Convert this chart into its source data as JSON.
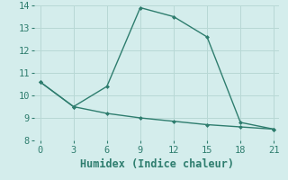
{
  "line1_x": [
    0,
    3,
    6,
    9,
    12,
    15,
    18,
    21
  ],
  "line1_y": [
    10.6,
    9.5,
    10.4,
    13.9,
    13.5,
    12.6,
    8.8,
    8.5
  ],
  "line2_x": [
    0,
    3,
    6,
    9,
    12,
    15,
    18,
    21
  ],
  "line2_y": [
    10.6,
    9.5,
    9.2,
    9.0,
    8.85,
    8.7,
    8.6,
    8.5
  ],
  "line_color": "#2e7d6e",
  "marker": "D",
  "markersize": 2.5,
  "linewidth": 1.0,
  "xlabel": "Humidex (Indice chaleur)",
  "xlim": [
    -0.5,
    21.5
  ],
  "ylim": [
    8,
    14
  ],
  "yticks": [
    8,
    9,
    10,
    11,
    12,
    13,
    14
  ],
  "xticks": [
    0,
    3,
    6,
    9,
    12,
    15,
    18,
    21
  ],
  "bg_color": "#d4edec",
  "grid_color": "#b8d8d5",
  "tick_fontsize": 7.5,
  "xlabel_fontsize": 8.5
}
